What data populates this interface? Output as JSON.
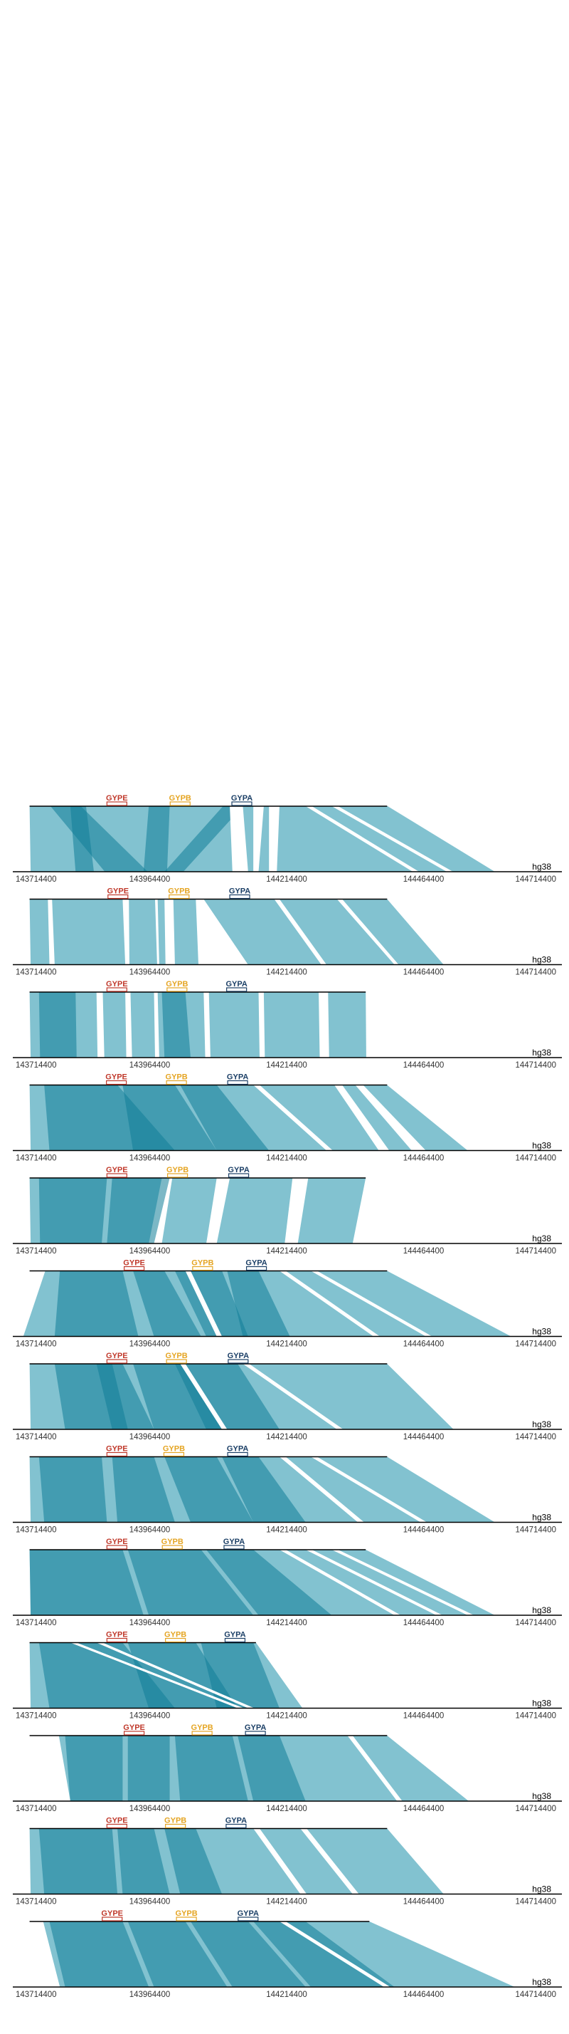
{
  "colors": {
    "ribbon": "#2e9ab0",
    "ribbon_dark": "#117e98",
    "line": "#000000",
    "gene_gype": "#c0392b",
    "gene_gypb": "#e5a523",
    "gene_gypa": "#1b3f66"
  },
  "chart_data": {
    "type": "synteny",
    "genes": [
      {
        "name": "GYPE",
        "color": "#c0392b"
      },
      {
        "name": "GYPB",
        "color": "#e5a523"
      },
      {
        "name": "GYPA",
        "color": "#1b3f66"
      }
    ],
    "reference": {
      "label": "hg38",
      "ticks": [
        "143714400",
        "143964400",
        "144214400",
        "144464400",
        "144714400"
      ],
      "range": [
        143714400,
        144714400
      ]
    },
    "panels": [
      {
        "gene_pos": [
          143889000,
          144010000,
          144128000
        ],
        "hap_end": 144406000,
        "ref_end": 144611000,
        "ribbons": [
          [
            143722000,
            144407000,
            143724000,
            144612000,
            0
          ],
          [
            143762000,
            143820000,
            143866000,
            143948000,
            2
          ],
          [
            143800000,
            143830000,
            143810000,
            143845000,
            2
          ],
          [
            143950000,
            143990000,
            143940000,
            143985000,
            2
          ],
          [
            144092000,
            144130000,
            143980000,
            144016000,
            2
          ],
          [
            144105000,
            144130000,
            144110000,
            144140000,
            1
          ],
          [
            144150000,
            144170000,
            144150000,
            144160000,
            1
          ],
          [
            144180000,
            144200000,
            144180000,
            144195000,
            1
          ],
          [
            144250000,
            144262000,
            144455000,
            144467000,
            1
          ],
          [
            144300000,
            144312000,
            144520000,
            144532000,
            1
          ]
        ]
      },
      {
        "gene_pos": [
          143891000,
          144008000,
          144124000
        ],
        "hap_end": 144406000,
        "ref_end": 144514000,
        "ribbons": [
          [
            143722000,
            143757000,
            143724000,
            143760000,
            0
          ],
          [
            143765000,
            143900000,
            143770000,
            143905000,
            0
          ],
          [
            143912000,
            143962000,
            143913000,
            143966000,
            0
          ],
          [
            143967000,
            144052000,
            143970000,
            144057000,
            0
          ],
          [
            144054000,
            144310000,
            144058000,
            144420000,
            0
          ],
          [
            144320000,
            144406000,
            144428000,
            144514000,
            0
          ],
          [
            143980000,
            143997000,
            143982000,
            144000000,
            1
          ],
          [
            144040000,
            144055000,
            144045000,
            144140000,
            1
          ],
          [
            144190000,
            144200000,
            144280000,
            144290000,
            1
          ]
        ]
      },
      {
        "gene_pos": [
          143889000,
          144004000,
          144118000
        ],
        "hap_end": 144365000,
        "ref_end": 144365000,
        "ribbons": [
          [
            143722000,
            143850000,
            143724000,
            143852000,
            0
          ],
          [
            143862000,
            143905000,
            143865000,
            143907000,
            0
          ],
          [
            143915000,
            143960000,
            143918000,
            143962000,
            0
          ],
          [
            143967000,
            144055000,
            143970000,
            144058000,
            0
          ],
          [
            144065000,
            144160000,
            144068000,
            144162000,
            0
          ],
          [
            144170000,
            144275000,
            144172000,
            144277000,
            0
          ],
          [
            144293000,
            144365000,
            144295000,
            144366000,
            0
          ],
          [
            143740000,
            143810000,
            143742000,
            143812000,
            2
          ],
          [
            143975000,
            144020000,
            143980000,
            144030000,
            2
          ]
        ]
      },
      {
        "gene_pos": [
          143888000,
          144003000,
          144120000
        ],
        "hap_end": 144406000,
        "ref_end": 144560000,
        "ribbons": [
          [
            143722000,
            144305000,
            143724000,
            144390000,
            0
          ],
          [
            144320000,
            144345000,
            144410000,
            144453000,
            0
          ],
          [
            144360000,
            144406000,
            144480000,
            144560000,
            0
          ],
          [
            143750000,
            143890000,
            143760000,
            144000000,
            2
          ],
          [
            143900000,
            144000000,
            143920000,
            144080000,
            2
          ],
          [
            144010000,
            144080000,
            144080000,
            144180000,
            2
          ],
          [
            144150000,
            144162000,
            144290000,
            144302000,
            1
          ]
        ]
      },
      {
        "gene_pos": [
          143889000,
          144005000,
          144122000
        ],
        "hap_end": 144365000,
        "ref_end": 144365000,
        "ribbons": [
          [
            143722000,
            143975000,
            143724000,
            143950000,
            0
          ],
          [
            143995000,
            144080000,
            143975000,
            144060000,
            0
          ],
          [
            144105000,
            144225000,
            144080000,
            144210000,
            0
          ],
          [
            144255000,
            144365000,
            144235000,
            144340000,
            0
          ],
          [
            143740000,
            143870000,
            143742000,
            143860000,
            2
          ],
          [
            143880000,
            143990000,
            143870000,
            143960000,
            2
          ]
        ]
      },
      {
        "gene_pos": [
          143922000,
          144053000,
          144156000
        ],
        "hap_end": 144406000,
        "ref_end": 144643000,
        "ribbons": [
          [
            143752000,
            144406000,
            143710000,
            144643000,
            0
          ],
          [
            143780000,
            143900000,
            143770000,
            143930000,
            2
          ],
          [
            143920000,
            143980000,
            143960000,
            144050000,
            2
          ],
          [
            144000000,
            144090000,
            144060000,
            144140000,
            2
          ],
          [
            144100000,
            144160000,
            144130000,
            144220000,
            2
          ],
          [
            144200000,
            144212000,
            144380000,
            144392000,
            1
          ],
          [
            144260000,
            144272000,
            144480000,
            144492000,
            1
          ],
          [
            144020000,
            144030000,
            144080000,
            144090000,
            1
          ]
        ]
      },
      {
        "gene_pos": [
          143889000,
          144003000,
          144121000
        ],
        "hap_end": 144406000,
        "ref_end": 144533000,
        "ribbons": [
          [
            143722000,
            144406000,
            143724000,
            144533000,
            0
          ],
          [
            143770000,
            143880000,
            143790000,
            143910000,
            2
          ],
          [
            143850000,
            143900000,
            143880000,
            143960000,
            2
          ],
          [
            143920000,
            144010000,
            143960000,
            144100000,
            2
          ],
          [
            144000000,
            144120000,
            144060000,
            144200000,
            2
          ],
          [
            144130000,
            144142000,
            144310000,
            144322000,
            1
          ],
          [
            144010000,
            144020000,
            144090000,
            144100000,
            1
          ]
        ]
      },
      {
        "gene_pos": [
          143889000,
          143998000,
          144120000
        ],
        "hap_end": 144406000,
        "ref_end": 144612000,
        "ribbons": [
          [
            143722000,
            144406000,
            143724000,
            144612000,
            0
          ],
          [
            143740000,
            143860000,
            143750000,
            143870000,
            2
          ],
          [
            143880000,
            143960000,
            143890000,
            144000000,
            2
          ],
          [
            143980000,
            144080000,
            144030000,
            144150000,
            2
          ],
          [
            144090000,
            144160000,
            144150000,
            144250000,
            2
          ],
          [
            144200000,
            144212000,
            144350000,
            144362000,
            1
          ],
          [
            144260000,
            144272000,
            144470000,
            144482000,
            1
          ]
        ]
      },
      {
        "gene_pos": [
          143889000,
          143995000,
          144113000
        ],
        "hap_end": 144365000,
        "ref_end": 144612000,
        "ribbons": [
          [
            143722000,
            144365000,
            143724000,
            144612000,
            0
          ],
          [
            143722000,
            143900000,
            143724000,
            143940000,
            2
          ],
          [
            143910000,
            144050000,
            143950000,
            144150000,
            2
          ],
          [
            144060000,
            144150000,
            144160000,
            144300000,
            2
          ],
          [
            144200000,
            144212000,
            144420000,
            144432000,
            1
          ],
          [
            144250000,
            144262000,
            144500000,
            144512000,
            1
          ],
          [
            144300000,
            144312000,
            144560000,
            144572000,
            1
          ]
        ]
      },
      {
        "gene_pos": [
          143889000,
          144001000,
          144115000
        ],
        "hap_end": 144155000,
        "ref_end": 144244000,
        "ribbons": [
          [
            143722000,
            144155000,
            143724000,
            144244000,
            0
          ],
          [
            143740000,
            143900000,
            143760000,
            144000000,
            2
          ],
          [
            143910000,
            144040000,
            143950000,
            144120000,
            2
          ],
          [
            144050000,
            144150000,
            144080000,
            144200000,
            2
          ],
          [
            143800000,
            143812000,
            144120000,
            144132000,
            1
          ],
          [
            143850000,
            143862000,
            144140000,
            144152000,
            1
          ]
        ]
      },
      {
        "gene_pos": [
          143922000,
          144052000,
          144154000
        ],
        "hap_end": 144406000,
        "ref_end": 144562000,
        "ribbons": [
          [
            143778000,
            144406000,
            143800000,
            144562000,
            0
          ],
          [
            143790000,
            143900000,
            143800000,
            143900000,
            2
          ],
          [
            143910000,
            143990000,
            143910000,
            143990000,
            2
          ],
          [
            144000000,
            144110000,
            144010000,
            144140000,
            2
          ],
          [
            144120000,
            144200000,
            144150000,
            144250000,
            2
          ],
          [
            144330000,
            144340000,
            144425000,
            144435000,
            1
          ]
        ]
      },
      {
        "gene_pos": [
          143889000,
          144001000,
          144117000
        ],
        "hap_end": 144406000,
        "ref_end": 144514000,
        "ribbons": [
          [
            143722000,
            144406000,
            143724000,
            144514000,
            0
          ],
          [
            143740000,
            143880000,
            143750000,
            143890000,
            2
          ],
          [
            143890000,
            143960000,
            143900000,
            143990000,
            2
          ],
          [
            143980000,
            144040000,
            144010000,
            144090000,
            2
          ],
          [
            144150000,
            144162000,
            144240000,
            144252000,
            1
          ],
          [
            144240000,
            144252000,
            144340000,
            144352000,
            1
          ]
        ]
      },
      {
        "gene_pos": [
          143880000,
          144022000,
          144140000
        ],
        "hap_end": 144372000,
        "ref_end": 144650000,
        "ribbons": [
          [
            143748000,
            144372000,
            143780000,
            144650000,
            0
          ],
          [
            143760000,
            143900000,
            143790000,
            143950000,
            2
          ],
          [
            143910000,
            144020000,
            143960000,
            144100000,
            2
          ],
          [
            144030000,
            144140000,
            144110000,
            144250000,
            2
          ],
          [
            144150000,
            144250000,
            144260000,
            144420000,
            2
          ],
          [
            144200000,
            144212000,
            144400000,
            144412000,
            1
          ]
        ]
      }
    ]
  }
}
